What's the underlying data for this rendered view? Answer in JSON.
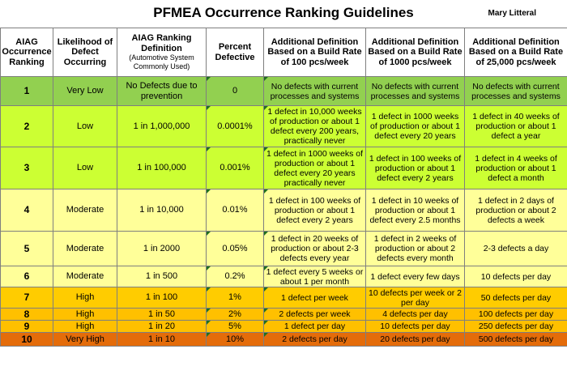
{
  "title": "PFMEA Occurrence Ranking Guidelines",
  "author": "Mary Litteral",
  "headers": {
    "rank": "AIAG Occurrence Ranking",
    "likelihood": "Likelihood of Defect Occurring",
    "aiag_def": "AIAG Ranking Definition",
    "aiag_def_sub": "(Automotive System Commonly Used)",
    "percent": "Percent Defective",
    "def100": "Additional Definition Based on a Build Rate of 100 pcs/week",
    "def1000": "Additional Definition Based on a Build Rate of 1000 pcs/week",
    "def25000": "Additional Definition Based on a Build Rate of 25,000 pcs/week"
  },
  "row_colors": {
    "1": "#92d050",
    "2": "#ccff33",
    "3": "#ccff33",
    "4": "#ffff99",
    "5": "#ffff99",
    "6": "#ffff99",
    "7": "#ffcc00",
    "8": "#ffc000",
    "9": "#ffc000",
    "10": "#e46c0a"
  },
  "rows": [
    {
      "rank": "1",
      "likelihood": "Very Low",
      "definition": "No Defects due to prevention",
      "percent": "0",
      "d100": "No defects with current processes and systems",
      "d1000": "No defects with current processes and systems",
      "d25000": "No defects with current processes and systems"
    },
    {
      "rank": "2",
      "likelihood": "Low",
      "definition": "1 in 1,000,000",
      "percent": "0.0001%",
      "d100": "1 defect in 10,000 weeks of production or about 1 defect every 200 years, practically never",
      "d1000": "1 defect in 1000 weeks of production or about 1 defect every 20 years",
      "d25000": "1 defect in 40 weeks of production or about 1 defect a year"
    },
    {
      "rank": "3",
      "likelihood": "Low",
      "definition": "1 in 100,000",
      "percent": "0.001%",
      "d100": "1 defect in 1000 weeks of production or about 1 defect every 20 years practically never",
      "d1000": "1 defect in 100 weeks of production or about 1 defect every 2 years",
      "d25000": "1 defect in 4 weeks of production or about 1 defect a month"
    },
    {
      "rank": "4",
      "likelihood": "Moderate",
      "definition": "1 in 10,000",
      "percent": "0.01%",
      "d100": "1 defect in 100 weeks of production or about 1 defect every 2 years",
      "d1000": "1 defect in 10 weeks of production or about 1 defect every 2.5 months",
      "d25000": "1 defect in 2 days of production or about 2 defects a week"
    },
    {
      "rank": "5",
      "likelihood": "Moderate",
      "definition": "1 in 2000",
      "percent": "0.05%",
      "d100": "1 defect in 20 weeks of production or about 2-3 defects every year",
      "d1000": "1 defect in 2 weeks of production or about 2 defects every month",
      "d25000": "2-3 defects a day"
    },
    {
      "rank": "6",
      "likelihood": "Moderate",
      "definition": "1 in 500",
      "percent": "0.2%",
      "d100": "1 defect every 5 weeks or about 1 per month",
      "d1000": "1 defect every few days",
      "d25000": "10 defects per day"
    },
    {
      "rank": "7",
      "likelihood": "High",
      "definition": "1 in 100",
      "percent": "1%",
      "d100": "1 defect per week",
      "d1000": "10 defects per week or 2 per day",
      "d25000": "50 defects per day"
    },
    {
      "rank": "8",
      "likelihood": "High",
      "definition": "1 in 50",
      "percent": "2%",
      "d100": "2 defects per week",
      "d1000": "4 defects per day",
      "d25000": "100 defects per day"
    },
    {
      "rank": "9",
      "likelihood": "High",
      "definition": "1 in 20",
      "percent": "5%",
      "d100": "1 defect per day",
      "d1000": "10 defects per day",
      "d25000": "250 defects per day"
    },
    {
      "rank": "10",
      "likelihood": "Very High",
      "definition": "1 in 10",
      "percent": "10%",
      "d100": "2 defects per day",
      "d1000": "20 defects per day",
      "d25000": "500 defects per day"
    }
  ]
}
